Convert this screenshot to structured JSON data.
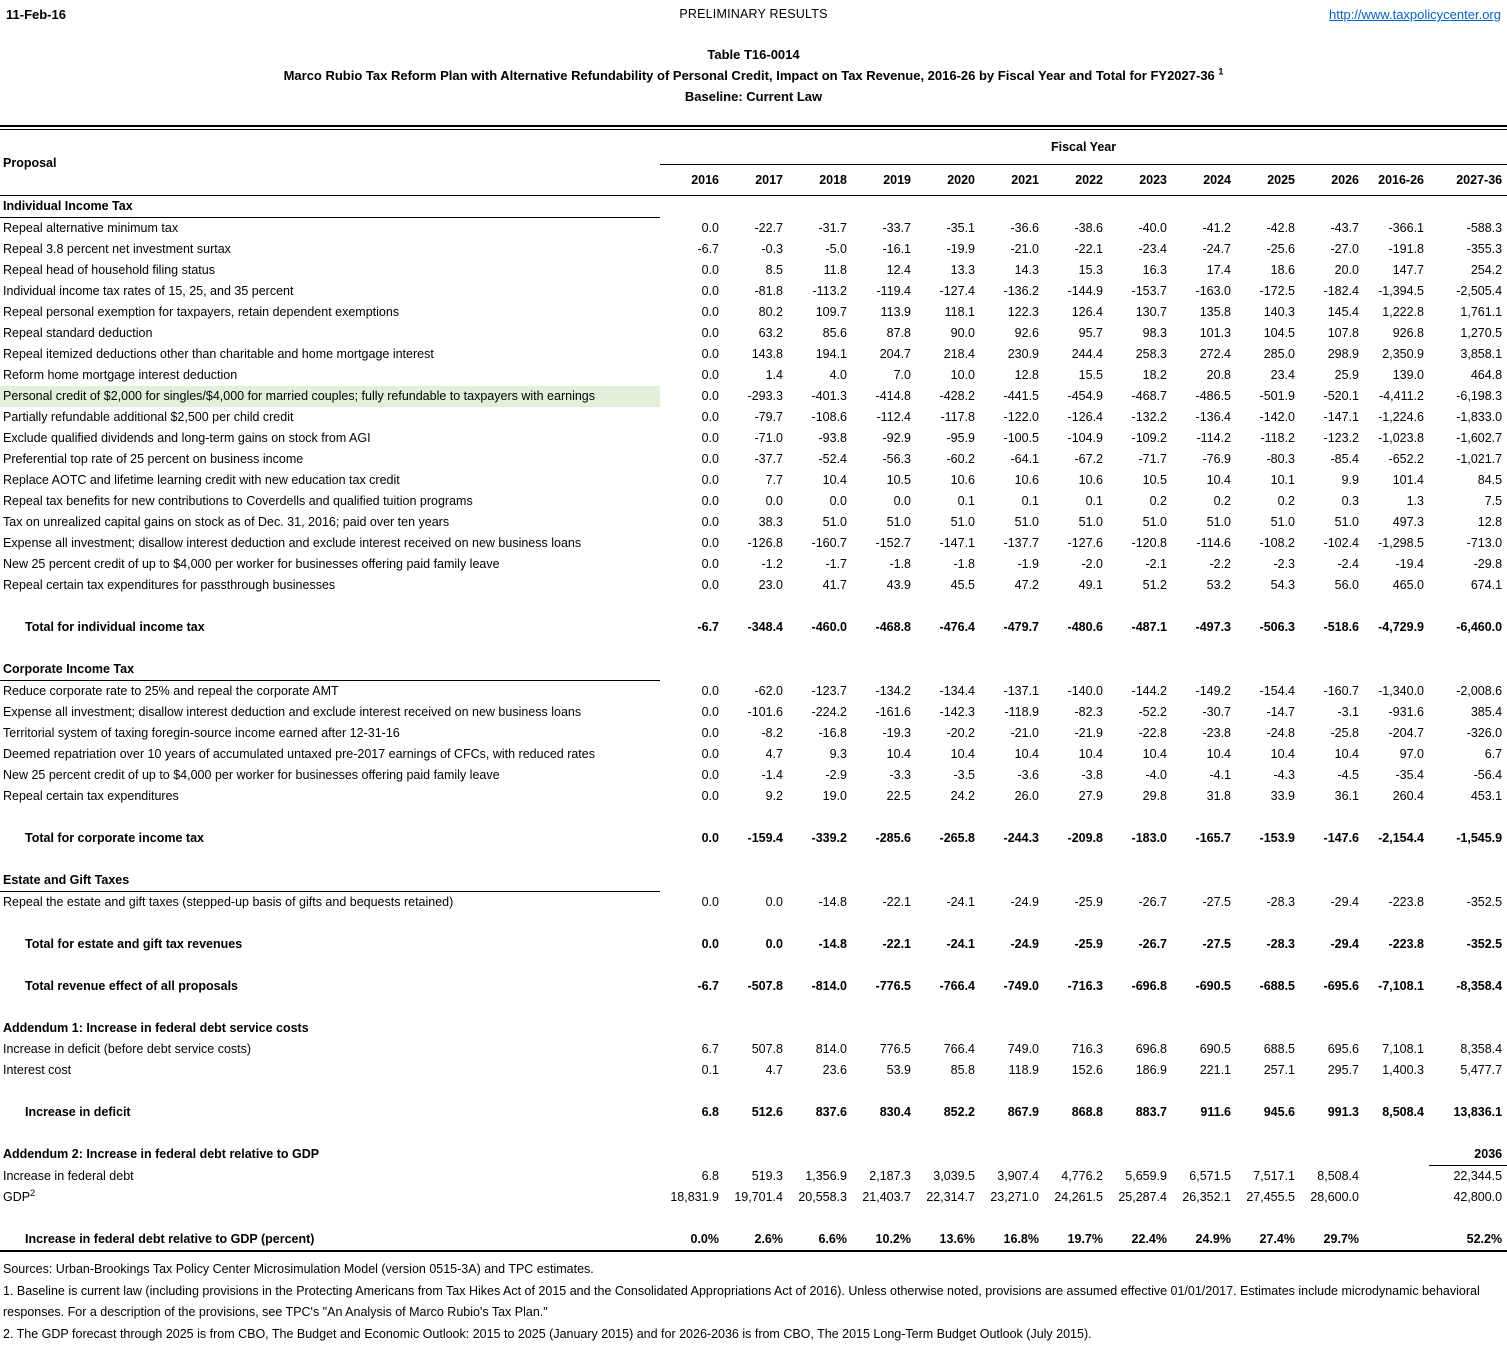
{
  "colors": {
    "highlight_green": "#e2efda",
    "link_blue": "#0563C1"
  },
  "header": {
    "date": "11-Feb-16",
    "status": "PRELIMINARY RESULTS",
    "url": "http://www.taxpolicycenter.org"
  },
  "title": {
    "table_number": "Table T16-0014",
    "main": "Marco Rubio Tax Reform Plan with Alternative Refundability of Personal Credit, Impact on Tax Revenue, 2016-26 by Fiscal Year and Total for FY2027-36",
    "sup": "1",
    "baseline": "Baseline: Current Law"
  },
  "table": {
    "proposal_header": "Proposal",
    "fiscal_year_header": "Fiscal Year",
    "columns": [
      "2016",
      "2017",
      "2018",
      "2019",
      "2020",
      "2021",
      "2022",
      "2023",
      "2024",
      "2025",
      "2026",
      "2016-26",
      "2027-36"
    ],
    "rows": [
      {
        "type": "section",
        "label": "Individual Income Tax"
      },
      {
        "type": "data",
        "label": "Repeal alternative minimum tax",
        "values": [
          "0.0",
          "-22.7",
          "-31.7",
          "-33.7",
          "-35.1",
          "-36.6",
          "-38.6",
          "-40.0",
          "-41.2",
          "-42.8",
          "-43.7",
          "-366.1",
          "-588.3"
        ]
      },
      {
        "type": "data",
        "label": "Repeal 3.8 percent net investment surtax",
        "values": [
          "-6.7",
          "-0.3",
          "-5.0",
          "-16.1",
          "-19.9",
          "-21.0",
          "-22.1",
          "-23.4",
          "-24.7",
          "-25.6",
          "-27.0",
          "-191.8",
          "-355.3"
        ]
      },
      {
        "type": "data",
        "label": "Repeal head of household filing status",
        "values": [
          "0.0",
          "8.5",
          "11.8",
          "12.4",
          "13.3",
          "14.3",
          "15.3",
          "16.3",
          "17.4",
          "18.6",
          "20.0",
          "147.7",
          "254.2"
        ]
      },
      {
        "type": "data",
        "label": "Individual income tax rates of 15, 25, and 35 percent",
        "values": [
          "0.0",
          "-81.8",
          "-113.2",
          "-119.4",
          "-127.4",
          "-136.2",
          "-144.9",
          "-153.7",
          "-163.0",
          "-172.5",
          "-182.4",
          "-1,394.5",
          "-2,505.4"
        ]
      },
      {
        "type": "data",
        "label": "Repeal personal exemption for taxpayers, retain dependent exemptions",
        "values": [
          "0.0",
          "80.2",
          "109.7",
          "113.9",
          "118.1",
          "122.3",
          "126.4",
          "130.7",
          "135.8",
          "140.3",
          "145.4",
          "1,222.8",
          "1,761.1"
        ]
      },
      {
        "type": "data",
        "label": "Repeal standard deduction",
        "values": [
          "0.0",
          "63.2",
          "85.6",
          "87.8",
          "90.0",
          "92.6",
          "95.7",
          "98.3",
          "101.3",
          "104.5",
          "107.8",
          "926.8",
          "1,270.5"
        ]
      },
      {
        "type": "data",
        "label": "Repeal itemized deductions other than charitable and home mortgage interest",
        "values": [
          "0.0",
          "143.8",
          "194.1",
          "204.7",
          "218.4",
          "230.9",
          "244.4",
          "258.3",
          "272.4",
          "285.0",
          "298.9",
          "2,350.9",
          "3,858.1"
        ]
      },
      {
        "type": "data",
        "label": "Reform home mortgage interest deduction",
        "values": [
          "0.0",
          "1.4",
          "4.0",
          "7.0",
          "10.0",
          "12.8",
          "15.5",
          "18.2",
          "20.8",
          "23.4",
          "25.9",
          "139.0",
          "464.8"
        ]
      },
      {
        "type": "data",
        "highlight": true,
        "label": "Personal credit of $2,000 for singles/$4,000 for married couples; fully refundable to taxpayers with earnings",
        "values": [
          "0.0",
          "-293.3",
          "-401.3",
          "-414.8",
          "-428.2",
          "-441.5",
          "-454.9",
          "-468.7",
          "-486.5",
          "-501.9",
          "-520.1",
          "-4,411.2",
          "-6,198.3"
        ]
      },
      {
        "type": "data",
        "label": "Partially refundable additional $2,500 per child credit",
        "values": [
          "0.0",
          "-79.7",
          "-108.6",
          "-112.4",
          "-117.8",
          "-122.0",
          "-126.4",
          "-132.2",
          "-136.4",
          "-142.0",
          "-147.1",
          "-1,224.6",
          "-1,833.0"
        ]
      },
      {
        "type": "data",
        "label": "Exclude qualified dividends and long-term gains on stock from AGI",
        "values": [
          "0.0",
          "-71.0",
          "-93.8",
          "-92.9",
          "-95.9",
          "-100.5",
          "-104.9",
          "-109.2",
          "-114.2",
          "-118.2",
          "-123.2",
          "-1,023.8",
          "-1,602.7"
        ]
      },
      {
        "type": "data",
        "label": "Preferential top rate of 25 percent on business income",
        "values": [
          "0.0",
          "-37.7",
          "-52.4",
          "-56.3",
          "-60.2",
          "-64.1",
          "-67.2",
          "-71.7",
          "-76.9",
          "-80.3",
          "-85.4",
          "-652.2",
          "-1,021.7"
        ]
      },
      {
        "type": "data",
        "label": "Replace AOTC and lifetime learning credit with new education tax credit",
        "values": [
          "0.0",
          "7.7",
          "10.4",
          "10.5",
          "10.6",
          "10.6",
          "10.6",
          "10.5",
          "10.4",
          "10.1",
          "9.9",
          "101.4",
          "84.5"
        ]
      },
      {
        "type": "data",
        "label": "Repeal tax benefits for new contributions to Coverdells and qualified tuition programs",
        "values": [
          "0.0",
          "0.0",
          "0.0",
          "0.0",
          "0.1",
          "0.1",
          "0.1",
          "0.2",
          "0.2",
          "0.2",
          "0.3",
          "1.3",
          "7.5"
        ]
      },
      {
        "type": "data",
        "label": "Tax on unrealized capital gains on stock as of Dec. 31, 2016; paid over ten years",
        "values": [
          "0.0",
          "38.3",
          "51.0",
          "51.0",
          "51.0",
          "51.0",
          "51.0",
          "51.0",
          "51.0",
          "51.0",
          "51.0",
          "497.3",
          "12.8"
        ]
      },
      {
        "type": "data",
        "label": "Expense all investment; disallow interest deduction and exclude interest received on new business loans",
        "values": [
          "0.0",
          "-126.8",
          "-160.7",
          "-152.7",
          "-147.1",
          "-137.7",
          "-127.6",
          "-120.8",
          "-114.6",
          "-108.2",
          "-102.4",
          "-1,298.5",
          "-713.0"
        ]
      },
      {
        "type": "data",
        "label": "New 25 percent credit of up to $4,000 per worker for businesses offering  paid family leave",
        "values": [
          "0.0",
          "-1.2",
          "-1.7",
          "-1.8",
          "-1.8",
          "-1.9",
          "-2.0",
          "-2.1",
          "-2.2",
          "-2.3",
          "-2.4",
          "-19.4",
          "-29.8"
        ]
      },
      {
        "type": "data",
        "label": "Repeal certain tax expenditures for passthrough businesses",
        "values": [
          "0.0",
          "23.0",
          "41.7",
          "43.9",
          "45.5",
          "47.2",
          "49.1",
          "51.2",
          "53.2",
          "54.3",
          "56.0",
          "465.0",
          "674.1"
        ]
      },
      {
        "type": "blank"
      },
      {
        "type": "total",
        "label": "Total for individual income tax",
        "values": [
          "-6.7",
          "-348.4",
          "-460.0",
          "-468.8",
          "-476.4",
          "-479.7",
          "-480.6",
          "-487.1",
          "-497.3",
          "-506.3",
          "-518.6",
          "-4,729.9",
          "-6,460.0"
        ]
      },
      {
        "type": "blank"
      },
      {
        "type": "section",
        "label": "Corporate Income Tax"
      },
      {
        "type": "data",
        "label": "Reduce corporate rate to 25% and repeal the corporate AMT",
        "values": [
          "0.0",
          "-62.0",
          "-123.7",
          "-134.2",
          "-134.4",
          "-137.1",
          "-140.0",
          "-144.2",
          "-149.2",
          "-154.4",
          "-160.7",
          "-1,340.0",
          "-2,008.6"
        ]
      },
      {
        "type": "data",
        "label": "Expense all investment; disallow interest deduction and exclude interest received on new business loans",
        "values": [
          "0.0",
          "-101.6",
          "-224.2",
          "-161.6",
          "-142.3",
          "-118.9",
          "-82.3",
          "-52.2",
          "-30.7",
          "-14.7",
          "-3.1",
          "-931.6",
          "385.4"
        ]
      },
      {
        "type": "data",
        "label": "Territorial system of taxing foregin-source income earned after 12-31-16",
        "values": [
          "0.0",
          "-8.2",
          "-16.8",
          "-19.3",
          "-20.2",
          "-21.0",
          "-21.9",
          "-22.8",
          "-23.8",
          "-24.8",
          "-25.8",
          "-204.7",
          "-326.0"
        ]
      },
      {
        "type": "data",
        "label": "Deemed repatriation over 10 years of accumulated untaxed pre-2017 earnings of CFCs, with reduced rates",
        "values": [
          "0.0",
          "4.7",
          "9.3",
          "10.4",
          "10.4",
          "10.4",
          "10.4",
          "10.4",
          "10.4",
          "10.4",
          "10.4",
          "97.0",
          "6.7"
        ]
      },
      {
        "type": "data",
        "label": "New 25 percent credit of up to $4,000 per worker for businesses offering  paid family leave",
        "values": [
          "0.0",
          "-1.4",
          "-2.9",
          "-3.3",
          "-3.5",
          "-3.6",
          "-3.8",
          "-4.0",
          "-4.1",
          "-4.3",
          "-4.5",
          "-35.4",
          "-56.4"
        ]
      },
      {
        "type": "data",
        "label": "Repeal certain tax expenditures",
        "values": [
          "0.0",
          "9.2",
          "19.0",
          "22.5",
          "24.2",
          "26.0",
          "27.9",
          "29.8",
          "31.8",
          "33.9",
          "36.1",
          "260.4",
          "453.1"
        ]
      },
      {
        "type": "blank"
      },
      {
        "type": "total",
        "label": "Total for corporate income tax",
        "values": [
          "0.0",
          "-159.4",
          "-339.2",
          "-285.6",
          "-265.8",
          "-244.3",
          "-209.8",
          "-183.0",
          "-165.7",
          "-153.9",
          "-147.6",
          "-2,154.4",
          "-1,545.9"
        ]
      },
      {
        "type": "blank"
      },
      {
        "type": "section",
        "label": "Estate and Gift Taxes"
      },
      {
        "type": "data",
        "label": "Repeal the estate and gift taxes (stepped-up basis of gifts and bequests retained)",
        "values": [
          "0.0",
          "0.0",
          "-14.8",
          "-22.1",
          "-24.1",
          "-24.9",
          "-25.9",
          "-26.7",
          "-27.5",
          "-28.3",
          "-29.4",
          "-223.8",
          "-352.5"
        ]
      },
      {
        "type": "blank"
      },
      {
        "type": "total",
        "label": "Total for estate and gift tax revenues",
        "values": [
          "0.0",
          "0.0",
          "-14.8",
          "-22.1",
          "-24.1",
          "-24.9",
          "-25.9",
          "-26.7",
          "-27.5",
          "-28.3",
          "-29.4",
          "-223.8",
          "-352.5"
        ]
      },
      {
        "type": "blank"
      },
      {
        "type": "total",
        "label": "Total revenue effect of all proposals",
        "values": [
          "-6.7",
          "-507.8",
          "-814.0",
          "-776.5",
          "-766.4",
          "-749.0",
          "-716.3",
          "-696.8",
          "-690.5",
          "-688.5",
          "-695.6",
          "-7,108.1",
          "-8,358.4"
        ]
      },
      {
        "type": "blank"
      },
      {
        "type": "section",
        "no_underline": true,
        "label": "Addendum 1: Increase in federal debt service costs"
      },
      {
        "type": "data",
        "label": "Increase in deficit (before debt service costs)",
        "values": [
          "6.7",
          "507.8",
          "814.0",
          "776.5",
          "766.4",
          "749.0",
          "716.3",
          "696.8",
          "690.5",
          "688.5",
          "695.6",
          "7,108.1",
          "8,358.4"
        ]
      },
      {
        "type": "data",
        "label": "Interest cost",
        "values": [
          "0.1",
          "4.7",
          "23.6",
          "53.9",
          "85.8",
          "118.9",
          "152.6",
          "186.9",
          "221.1",
          "257.1",
          "295.7",
          "1,400.3",
          "5,477.7"
        ]
      },
      {
        "type": "blank"
      },
      {
        "type": "total",
        "label": "Increase in deficit",
        "values": [
          "6.8",
          "512.6",
          "837.6",
          "830.4",
          "852.2",
          "867.9",
          "868.8",
          "883.7",
          "911.6",
          "945.6",
          "991.3",
          "8,508.4",
          "13,836.1"
        ]
      },
      {
        "type": "blank"
      },
      {
        "type": "section",
        "no_underline": true,
        "last_col_header": "2036",
        "label": "Addendum 2: Increase in federal debt relative to GDP"
      },
      {
        "type": "data",
        "label": "Increase in federal debt",
        "values": [
          "6.8",
          "519.3",
          "1,356.9",
          "2,187.3",
          "3,039.5",
          "3,907.4",
          "4,776.2",
          "5,659.9",
          "6,571.5",
          "7,517.1",
          "8,508.4",
          "",
          "22,344.5"
        ]
      },
      {
        "type": "data",
        "label": "GDP",
        "label_sup": "2",
        "values": [
          "18,831.9",
          "19,701.4",
          "20,558.3",
          "21,403.7",
          "22,314.7",
          "23,271.0",
          "24,261.5",
          "25,287.4",
          "26,352.1",
          "27,455.5",
          "28,600.0",
          "",
          "42,800.0"
        ]
      },
      {
        "type": "blank"
      },
      {
        "type": "total",
        "label": "Increase in federal debt relative to GDP (percent)",
        "values": [
          "0.0%",
          "2.6%",
          "6.6%",
          "10.2%",
          "13.6%",
          "16.8%",
          "19.7%",
          "22.4%",
          "24.9%",
          "27.4%",
          "29.7%",
          "",
          "52.2%"
        ]
      }
    ]
  },
  "footnotes": [
    "Sources: Urban-Brookings Tax Policy Center Microsimulation Model (version 0515-3A) and TPC estimates.",
    "1. Baseline is current law (including provisions in the Protecting Americans from Tax Hikes Act of 2015 and the Consolidated Appropriations Act of 2016). Unless otherwise noted, provisions are assumed effective 01/01/2017. Estimates include microdynamic behavioral responses. For a description of the provisions, see TPC's \"An Analysis of Marco Rubio's Tax Plan.\"",
    "2. The GDP forecast through 2025 is from CBO, The Budget and Economic Outlook: 2015 to 2025 (January 2015) and for 2026-2036 is from CBO, The 2015 Long-Term Budget Outlook (July 2015)."
  ]
}
